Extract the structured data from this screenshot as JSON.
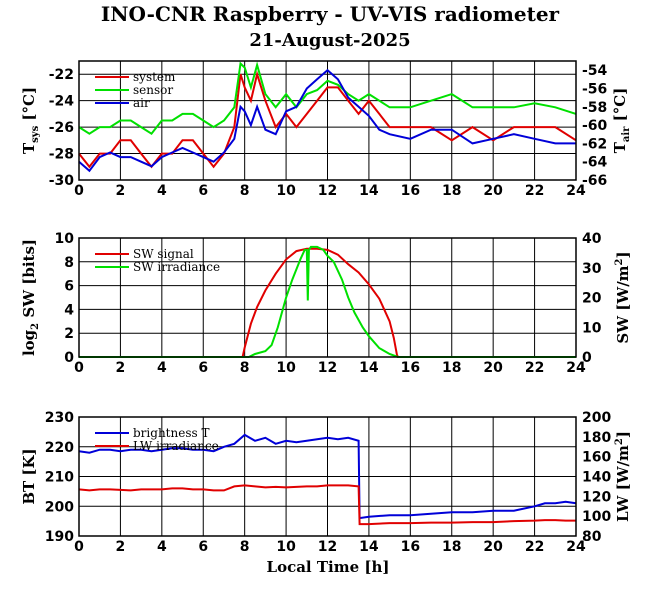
{
  "title": "INO-CNR Raspberry - UV-VIS radiometer",
  "date": "21-August-2025",
  "colors": {
    "red": "#e00000",
    "green": "#00e000",
    "blue": "#0000d8"
  },
  "chart_data": [
    {
      "type": "line",
      "name_left": "T",
      "sub_left": "sys",
      "unit_left": " [°C]",
      "name_right": "T",
      "sub_right": "air",
      "unit_right": " [°C]",
      "xlim": [
        0,
        24
      ],
      "ylim": [
        -30,
        -21
      ],
      "y2lim": [
        -66,
        -53
      ],
      "xticks": [
        "0",
        "2",
        "4",
        "6",
        "8",
        "10",
        "12",
        "14",
        "16",
        "18",
        "20",
        "22",
        "24"
      ],
      "yticks": [
        "-30",
        "-28",
        "-26",
        "-24",
        "-22"
      ],
      "y2ticks": [
        "-66",
        "-64",
        "-62",
        "-60",
        "-58",
        "-56",
        "-54"
      ],
      "grid": true,
      "legend": "top-left",
      "series": [
        {
          "name": "system",
          "color": "red",
          "axis": "left",
          "x": [
            0,
            0.5,
            1,
            1.5,
            2,
            2.5,
            3,
            3.5,
            4,
            4.5,
            5,
            5.5,
            6,
            6.5,
            7,
            7.5,
            7.8,
            8,
            8.3,
            8.6,
            9,
            9.5,
            10,
            10.5,
            11,
            11.5,
            12,
            12.5,
            13,
            13.5,
            14,
            14.5,
            15,
            16,
            17,
            18,
            19,
            20,
            21,
            22,
            23,
            24
          ],
          "y": [
            -28,
            -29,
            -28,
            -28,
            -27,
            -27,
            -28,
            -29,
            -28,
            -28,
            -27,
            -27,
            -28,
            -29,
            -28,
            -26,
            -22,
            -23,
            -24,
            -22,
            -24,
            -26,
            -25,
            -26,
            -25,
            -24,
            -23,
            -23,
            -24,
            -25,
            -24,
            -25,
            -26,
            -26,
            -26,
            -27,
            -26,
            -27,
            -26,
            -26,
            -26,
            -27
          ]
        },
        {
          "name": "sensor",
          "color": "green",
          "axis": "left",
          "x": [
            0,
            0.5,
            1,
            1.5,
            2,
            2.5,
            3,
            3.5,
            4,
            4.5,
            5,
            5.5,
            6,
            6.5,
            7,
            7.5,
            7.8,
            8,
            8.3,
            8.6,
            9,
            9.5,
            10,
            10.5,
            11,
            11.5,
            12,
            12.5,
            13,
            13.5,
            14,
            14.5,
            15,
            16,
            17,
            18,
            19,
            20,
            21,
            22,
            23,
            24
          ],
          "y": [
            -26,
            -26.5,
            -26,
            -26,
            -25.5,
            -25.5,
            -26,
            -26.5,
            -25.5,
            -25.5,
            -25,
            -25,
            -25.5,
            -26,
            -25.5,
            -24.5,
            -21.2,
            -21.5,
            -23,
            -21.3,
            -23.5,
            -24.5,
            -23.5,
            -24.5,
            -23.5,
            -23.2,
            -22.5,
            -22.8,
            -23.5,
            -24,
            -23.5,
            -24,
            -24.5,
            -24.5,
            -24,
            -23.5,
            -24.5,
            -24.5,
            -24.5,
            -24.2,
            -24.5,
            -25
          ]
        },
        {
          "name": "air",
          "color": "blue",
          "axis": "right",
          "x": [
            0,
            0.5,
            1,
            1.5,
            2,
            2.5,
            3,
            3.5,
            4,
            4.5,
            5,
            5.5,
            6,
            6.5,
            7,
            7.5,
            7.8,
            8,
            8.3,
            8.6,
            9,
            9.5,
            10,
            10.5,
            11,
            11.5,
            12,
            12.5,
            13,
            13.5,
            14,
            14.5,
            15,
            16,
            17,
            18,
            19,
            20,
            21,
            22,
            23,
            24
          ],
          "y": [
            -64,
            -65,
            -63.5,
            -63,
            -63.5,
            -63.5,
            -64,
            -64.5,
            -63.5,
            -63,
            -62.5,
            -63,
            -63.5,
            -64,
            -63,
            -61.5,
            -58,
            -58.5,
            -60,
            -58,
            -60.5,
            -61,
            -58.5,
            -58,
            -56,
            -55,
            -54,
            -55,
            -57,
            -58,
            -59,
            -60.5,
            -61,
            -61.5,
            -60.5,
            -60.5,
            -62,
            -61.5,
            -61,
            -61.5,
            -62,
            -62
          ]
        }
      ]
    },
    {
      "type": "line",
      "name_left": "log",
      "sub_left": "2",
      "unit_left": " SW [bits]",
      "name_right": "SW [W/m",
      "sup_right": "2",
      "unit_right": "]",
      "xlim": [
        0,
        24
      ],
      "ylim": [
        0,
        10
      ],
      "y2lim": [
        0,
        40
      ],
      "xticks": [
        "0",
        "2",
        "4",
        "6",
        "8",
        "10",
        "12",
        "14",
        "16",
        "18",
        "20",
        "22",
        "24"
      ],
      "yticks": [
        "0",
        "2",
        "4",
        "6",
        "8",
        "10"
      ],
      "y2ticks": [
        "0",
        "10",
        "20",
        "30",
        "40"
      ],
      "grid": true,
      "legend": "top-left",
      "series": [
        {
          "name": "SW signal",
          "color": "red",
          "axis": "left",
          "x": [
            0,
            7.9,
            8.0,
            8.3,
            8.6,
            9.0,
            9.5,
            10.0,
            10.5,
            11.0,
            11.5,
            12.0,
            12.5,
            13.0,
            13.5,
            14.0,
            14.5,
            15.0,
            15.2,
            15.35,
            15.4,
            24
          ],
          "y": [
            0,
            0,
            0.8,
            2.8,
            4.2,
            5.6,
            7.0,
            8.2,
            8.9,
            9.1,
            9.1,
            9.0,
            8.6,
            7.8,
            7.1,
            6.1,
            4.9,
            3.0,
            1.6,
            0.2,
            0,
            0
          ]
        },
        {
          "name": "SW irradiance",
          "color": "green",
          "axis": "right",
          "x": [
            0,
            8.2,
            8.5,
            9.0,
            9.3,
            9.6,
            10.0,
            10.3,
            10.7,
            10.9,
            11.0,
            11.05,
            11.1,
            11.2,
            11.5,
            11.8,
            12.0,
            12.3,
            12.7,
            13.0,
            13.3,
            13.7,
            14.0,
            14.5,
            15.0,
            15.4,
            24
          ],
          "y": [
            0,
            0,
            1,
            2,
            4,
            10,
            20,
            26,
            33,
            36,
            36,
            19,
            36,
            37,
            37,
            36,
            34,
            32,
            26,
            20,
            15,
            10,
            7,
            3,
            1,
            0,
            0
          ]
        }
      ]
    },
    {
      "type": "line",
      "name_left": "BT [K]",
      "name_right": "LW [W/m",
      "sup_right": "2",
      "unit_right": "]",
      "xlabel": "Local Time [h]",
      "xlim": [
        0,
        24
      ],
      "ylim": [
        190,
        230
      ],
      "y2lim": [
        80,
        200
      ],
      "xticks": [
        "0",
        "2",
        "4",
        "6",
        "8",
        "10",
        "12",
        "14",
        "16",
        "18",
        "20",
        "22",
        "24"
      ],
      "yticks": [
        "190",
        "200",
        "210",
        "220",
        "230"
      ],
      "y2ticks": [
        "80",
        "100",
        "120",
        "140",
        "160",
        "180",
        "200"
      ],
      "grid": true,
      "legend": "top-left",
      "series": [
        {
          "name": "brightness T",
          "color": "blue",
          "axis": "left",
          "x": [
            0,
            0.5,
            1,
            1.5,
            2,
            2.5,
            3,
            3.5,
            4,
            4.5,
            5,
            5.5,
            6,
            6.5,
            7,
            7.5,
            8,
            8.5,
            9,
            9.5,
            10,
            10.5,
            11,
            11.5,
            12,
            12.5,
            13,
            13.5,
            13.55,
            14,
            15,
            16,
            17,
            18,
            19,
            20,
            21,
            22,
            22.5,
            23,
            23.5,
            24
          ],
          "y": [
            218.5,
            218,
            219,
            219,
            218.5,
            219,
            219,
            218.5,
            219,
            219.5,
            219.5,
            219,
            219,
            218.5,
            220,
            221,
            224,
            222,
            223,
            221,
            222,
            221.5,
            222,
            222.5,
            223,
            222.5,
            223,
            222,
            196,
            196.5,
            197,
            197,
            197.5,
            198,
            198,
            198.5,
            198.5,
            200,
            201,
            201,
            201.5,
            201
          ]
        },
        {
          "name": "LW irradiance",
          "color": "red",
          "axis": "right",
          "x": [
            0,
            0.5,
            1,
            1.5,
            2,
            2.5,
            3,
            3.5,
            4,
            4.5,
            5,
            5.5,
            6,
            6.5,
            7,
            7.5,
            8,
            8.5,
            9,
            9.5,
            10,
            10.5,
            11,
            11.5,
            12,
            12.5,
            13,
            13.5,
            13.55,
            14,
            15,
            16,
            17,
            18,
            19,
            20,
            21,
            22,
            22.5,
            23,
            23.5,
            24
          ],
          "y": [
            127,
            126,
            127,
            127,
            126.5,
            126,
            127,
            127,
            127,
            128,
            128,
            127,
            127,
            126,
            126,
            130,
            131,
            130,
            129,
            129.5,
            129,
            129.5,
            130,
            130,
            131,
            131,
            131,
            130,
            92,
            92,
            93,
            93,
            93.5,
            93.5,
            94,
            94,
            95,
            95.5,
            96,
            96,
            95.5,
            95.5
          ]
        }
      ]
    }
  ]
}
